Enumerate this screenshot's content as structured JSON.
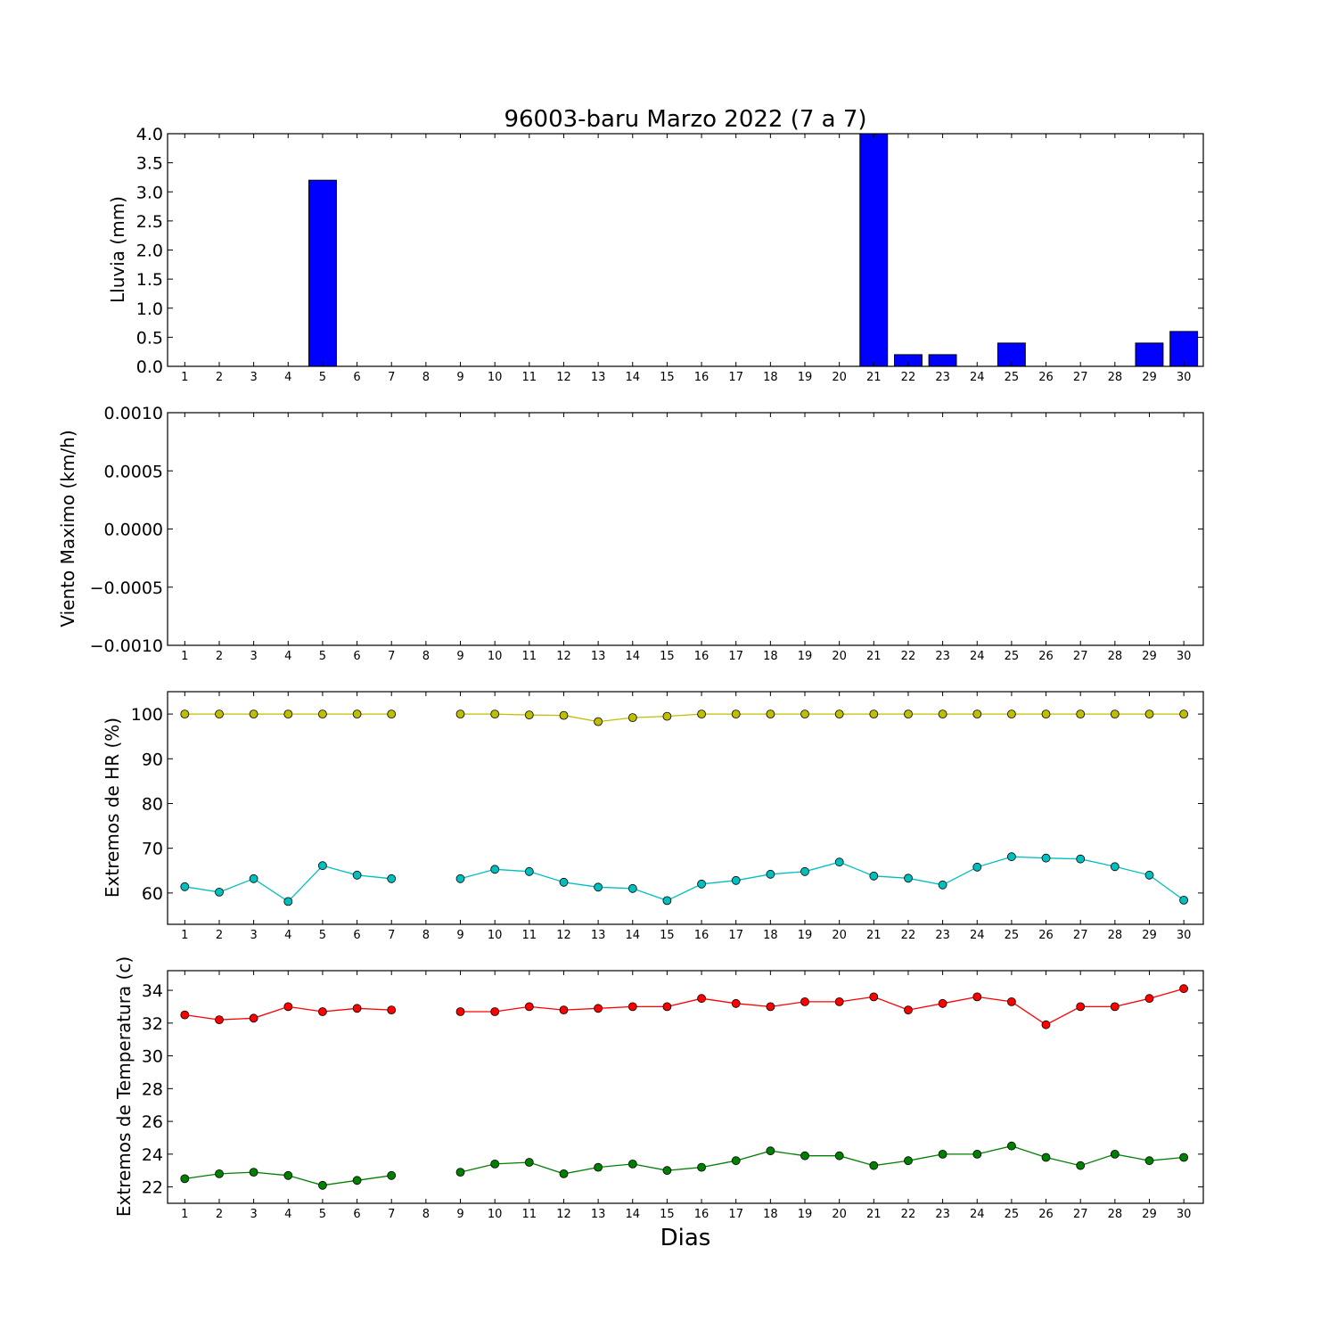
{
  "chart_data": [
    {
      "type": "bar",
      "title": "96003-baru Marzo 2022  (7 a 7)",
      "ylabel": "Lluvia (mm)",
      "xlabel": "",
      "categories": [
        "1",
        "2",
        "3",
        "4",
        "5",
        "6",
        "7",
        "8",
        "9",
        "10",
        "11",
        "12",
        "13",
        "14",
        "15",
        "16",
        "17",
        "18",
        "19",
        "20",
        "21",
        "22",
        "23",
        "24",
        "25",
        "26",
        "27",
        "28",
        "29",
        "30"
      ],
      "values": [
        0,
        0,
        0,
        0,
        3.2,
        0,
        0,
        0,
        0,
        0,
        0,
        0,
        0,
        0,
        0,
        0,
        0,
        0,
        0,
        0,
        4.0,
        0.2,
        0.2,
        0,
        0.4,
        0,
        0,
        0,
        0.4,
        0.6
      ],
      "ylim": [
        0,
        4.0
      ],
      "yticks": [
        "0.0",
        "0.5",
        "1.0",
        "1.5",
        "2.0",
        "2.5",
        "3.0",
        "3.5",
        "4.0"
      ],
      "color": "#0000ff"
    },
    {
      "type": "line",
      "title": "",
      "ylabel": "Viento Maximo (km/h)",
      "xlabel": "",
      "categories": [
        "1",
        "2",
        "3",
        "4",
        "5",
        "6",
        "7",
        "8",
        "9",
        "10",
        "11",
        "12",
        "13",
        "14",
        "15",
        "16",
        "17",
        "18",
        "19",
        "20",
        "21",
        "22",
        "23",
        "24",
        "25",
        "26",
        "27",
        "28",
        "29",
        "30"
      ],
      "series": [],
      "ylim": [
        -0.001,
        0.001
      ],
      "yticks": [
        "−0.0010",
        "−0.0005",
        "0.0000",
        "0.0005",
        "0.0010"
      ]
    },
    {
      "type": "line",
      "title": "",
      "ylabel": "Extremos de HR (%)",
      "xlabel": "",
      "categories": [
        "1",
        "2",
        "3",
        "4",
        "5",
        "6",
        "7",
        "8",
        "9",
        "10",
        "11",
        "12",
        "13",
        "14",
        "15",
        "16",
        "17",
        "18",
        "19",
        "20",
        "21",
        "22",
        "23",
        "24",
        "25",
        "26",
        "27",
        "28",
        "29",
        "30"
      ],
      "series": [
        {
          "color": "#bfbf00",
          "values": [
            100,
            100,
            100,
            100,
            100,
            100,
            100,
            null,
            100,
            100,
            99.8,
            99.7,
            98.3,
            99.2,
            99.5,
            100,
            100,
            100,
            100,
            100,
            100,
            100,
            100,
            100,
            100,
            100,
            100,
            100,
            100,
            100
          ]
        },
        {
          "color": "#00bfbf",
          "values": [
            61.4,
            60.2,
            63.2,
            58.1,
            66.1,
            64,
            63.2,
            null,
            63.2,
            65.3,
            64.8,
            62.4,
            61.3,
            61,
            58.3,
            62,
            62.8,
            64.2,
            64.8,
            66.9,
            63.8,
            63.3,
            61.8,
            65.8,
            68.1,
            67.8,
            67.6,
            65.9,
            64,
            58.4
          ]
        }
      ],
      "ylim": [
        53,
        105
      ],
      "yticks": [
        "60",
        "70",
        "80",
        "90",
        "100"
      ]
    },
    {
      "type": "line",
      "title": "",
      "ylabel": "Extremos de Temperatura (c)",
      "xlabel": "Dias",
      "categories": [
        "1",
        "2",
        "3",
        "4",
        "5",
        "6",
        "7",
        "8",
        "9",
        "10",
        "11",
        "12",
        "13",
        "14",
        "15",
        "16",
        "17",
        "18",
        "19",
        "20",
        "21",
        "22",
        "23",
        "24",
        "25",
        "26",
        "27",
        "28",
        "29",
        "30"
      ],
      "series": [
        {
          "color": "#ff0000",
          "values": [
            32.5,
            32.2,
            32.3,
            33,
            32.7,
            32.9,
            32.8,
            null,
            32.7,
            32.7,
            33,
            32.8,
            32.9,
            33,
            33,
            33.5,
            33.2,
            33,
            33.3,
            33.3,
            33.6,
            32.8,
            33.2,
            33.6,
            33.3,
            31.9,
            33,
            33,
            33.5,
            34.1
          ]
        },
        {
          "color": "#008000",
          "values": [
            22.5,
            22.8,
            22.9,
            22.7,
            22.1,
            22.4,
            22.7,
            null,
            22.9,
            23.4,
            23.5,
            22.8,
            23.2,
            23.4,
            23,
            23.2,
            23.6,
            24.2,
            23.9,
            23.9,
            23.3,
            23.6,
            24,
            24,
            24.5,
            23.8,
            23.3,
            24,
            23.6,
            23.8
          ]
        }
      ],
      "ylim": [
        21,
        35.2
      ],
      "yticks": [
        "22",
        "24",
        "26",
        "28",
        "30",
        "32",
        "34"
      ]
    }
  ]
}
